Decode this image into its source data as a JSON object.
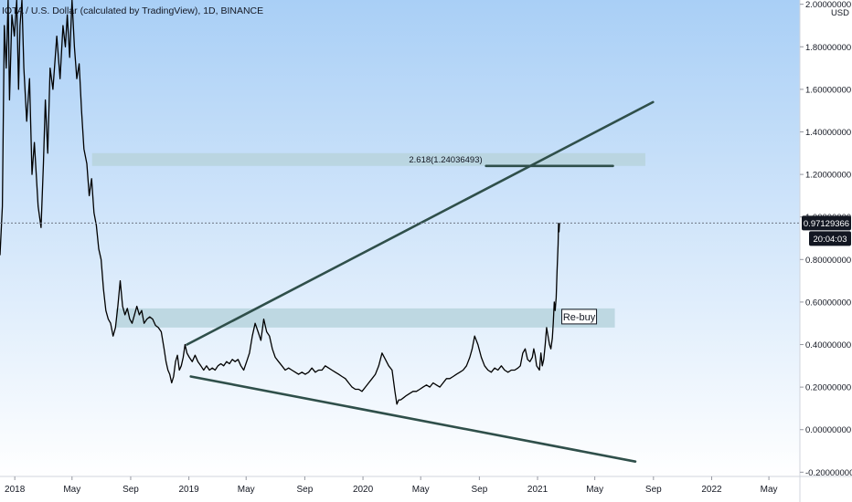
{
  "header": {
    "title": "IOTA / U.S. Dollar (calculated by TradingView), 1D, BINANCE",
    "currency_label": "USD"
  },
  "price_tags": {
    "current_price": "0.97129366",
    "countdown": "20:04:03"
  },
  "annotations": {
    "fib_label": "2.618(1.24036493)",
    "rebuy_label": "Re-buy"
  },
  "colors": {
    "background_gradient_top": "#a9cff6",
    "background_gradient_bottom": "#ffffff",
    "price_line": "#000000",
    "trendline": "#2f4f4a",
    "zone_fill": "#b7d4dd",
    "axis_text": "#131722",
    "tag_bg": "#131722",
    "tag_text": "#ffffff"
  },
  "chart_data": {
    "type": "line",
    "y_axis": {
      "ticks": [
        2.0,
        1.8,
        1.6,
        1.4,
        1.2,
        1.0,
        0.8,
        0.6,
        0.4,
        0.2,
        0.0,
        -0.2
      ],
      "tick_labels": [
        "2.00000000",
        "1.80000000",
        "1.60000000",
        "1.40000000",
        "1.20000000",
        "1.00000000",
        "0.80000000",
        "0.60000000",
        "0.40000000",
        "0.20000000",
        "0.00000000",
        "-0.20000000"
      ],
      "ylim": [
        -0.22,
        2.02
      ],
      "side": "right"
    },
    "x_axis": {
      "ticks": [
        "2018-01-01",
        "2018-05-01",
        "2018-09-01",
        "2019-01-01",
        "2019-05-01",
        "2019-09-01",
        "2020-01-01",
        "2020-05-01",
        "2020-09-01",
        "2021-01-01",
        "2021-05-01",
        "2021-09-01",
        "2022-01-01",
        "2022-05-01"
      ],
      "tick_labels": [
        "2018",
        "May",
        "Sep",
        "2019",
        "May",
        "Sep",
        "2020",
        "May",
        "Sep",
        "2021",
        "May",
        "Sep",
        "2022",
        "May"
      ],
      "xlim": [
        "2017-12-01",
        "2022-07-05"
      ]
    },
    "series": [
      {
        "x": [
          "2017-12-01",
          "2017-12-06",
          "2017-12-10",
          "2017-12-14",
          "2017-12-18",
          "2017-12-21",
          "2017-12-26",
          "2017-12-31",
          "2018-01-05",
          "2018-01-09",
          "2018-01-12",
          "2018-01-16",
          "2018-01-20",
          "2018-01-26",
          "2018-02-01",
          "2018-02-06",
          "2018-02-11",
          "2018-02-19",
          "2018-02-25",
          "2018-03-02",
          "2018-03-06",
          "2018-03-11",
          "2018-03-16",
          "2018-03-22",
          "2018-03-30",
          "2018-04-06",
          "2018-04-12",
          "2018-04-17",
          "2018-04-21",
          "2018-04-26",
          "2018-05-01",
          "2018-05-06",
          "2018-05-11",
          "2018-05-16",
          "2018-05-21",
          "2018-05-26",
          "2018-06-01",
          "2018-06-06",
          "2018-06-11",
          "2018-06-16",
          "2018-06-21",
          "2018-06-26",
          "2018-07-01",
          "2018-07-06",
          "2018-07-11",
          "2018-07-16",
          "2018-07-21",
          "2018-07-26",
          "2018-07-31",
          "2018-08-05",
          "2018-08-10",
          "2018-08-15",
          "2018-08-20",
          "2018-08-25",
          "2018-08-30",
          "2018-09-04",
          "2018-09-09",
          "2018-09-14",
          "2018-09-19",
          "2018-09-24",
          "2018-09-29",
          "2018-10-05",
          "2018-10-11",
          "2018-10-17",
          "2018-10-23",
          "2018-10-29",
          "2018-11-04",
          "2018-11-10",
          "2018-11-14",
          "2018-11-18",
          "2018-11-22",
          "2018-11-26",
          "2018-11-30",
          "2018-12-04",
          "2018-12-08",
          "2018-12-12",
          "2018-12-16",
          "2018-12-20",
          "2018-12-24",
          "2018-12-28",
          "2019-01-02",
          "2019-01-08",
          "2019-01-14",
          "2019-01-20",
          "2019-01-26",
          "2019-02-01",
          "2019-02-07",
          "2019-02-13",
          "2019-02-19",
          "2019-02-25",
          "2019-03-03",
          "2019-03-09",
          "2019-03-15",
          "2019-03-21",
          "2019-03-27",
          "2019-04-02",
          "2019-04-08",
          "2019-04-14",
          "2019-04-20",
          "2019-04-26",
          "2019-05-02",
          "2019-05-08",
          "2019-05-14",
          "2019-05-20",
          "2019-05-26",
          "2019-06-01",
          "2019-06-07",
          "2019-06-13",
          "2019-06-19",
          "2019-06-25",
          "2019-07-01",
          "2019-07-08",
          "2019-07-15",
          "2019-07-22",
          "2019-07-29",
          "2019-08-05",
          "2019-08-12",
          "2019-08-19",
          "2019-08-26",
          "2019-09-02",
          "2019-09-09",
          "2019-09-16",
          "2019-09-23",
          "2019-09-30",
          "2019-10-07",
          "2019-10-14",
          "2019-10-21",
          "2019-10-28",
          "2019-11-04",
          "2019-11-11",
          "2019-11-18",
          "2019-11-25",
          "2019-12-02",
          "2019-12-09",
          "2019-12-16",
          "2019-12-23",
          "2019-12-30",
          "2020-01-06",
          "2020-01-13",
          "2020-01-20",
          "2020-01-27",
          "2020-02-03",
          "2020-02-10",
          "2020-02-17",
          "2020-02-24",
          "2020-03-02",
          "2020-03-08",
          "2020-03-12",
          "2020-03-16",
          "2020-03-20",
          "2020-03-26",
          "2020-04-01",
          "2020-04-08",
          "2020-04-15",
          "2020-04-22",
          "2020-04-29",
          "2020-05-06",
          "2020-05-13",
          "2020-05-20",
          "2020-05-27",
          "2020-06-03",
          "2020-06-10",
          "2020-06-17",
          "2020-06-24",
          "2020-07-01",
          "2020-07-08",
          "2020-07-15",
          "2020-07-22",
          "2020-07-29",
          "2020-08-05",
          "2020-08-12",
          "2020-08-17",
          "2020-08-22",
          "2020-08-29",
          "2020-09-05",
          "2020-09-12",
          "2020-09-19",
          "2020-09-26",
          "2020-10-03",
          "2020-10-10",
          "2020-10-17",
          "2020-10-24",
          "2020-10-31",
          "2020-11-07",
          "2020-11-14",
          "2020-11-21",
          "2020-11-26",
          "2020-12-01",
          "2020-12-06",
          "2020-12-11",
          "2020-12-16",
          "2020-12-21",
          "2020-12-24",
          "2020-12-27",
          "2020-12-30",
          "2021-01-02",
          "2021-01-05",
          "2021-01-08",
          "2021-01-11",
          "2021-01-14",
          "2021-01-17",
          "2021-01-20",
          "2021-01-23",
          "2021-01-26",
          "2021-01-29",
          "2021-02-01",
          "2021-02-03",
          "2021-02-05",
          "2021-02-07",
          "2021-02-09",
          "2021-02-11",
          "2021-02-13",
          "2021-02-14",
          "2021-02-15",
          "2021-02-16"
        ],
        "y": [
          0.82,
          1.05,
          1.9,
          1.7,
          2.02,
          1.55,
          1.95,
          1.85,
          2.02,
          1.6,
          1.9,
          2.02,
          1.7,
          1.45,
          1.65,
          1.2,
          1.35,
          1.05,
          0.95,
          1.25,
          1.55,
          1.3,
          1.7,
          1.6,
          1.85,
          1.65,
          1.9,
          1.8,
          1.95,
          1.75,
          2.02,
          1.8,
          1.65,
          1.72,
          1.5,
          1.32,
          1.25,
          1.1,
          1.18,
          1.02,
          0.96,
          0.85,
          0.8,
          0.66,
          0.56,
          0.52,
          0.5,
          0.44,
          0.48,
          0.58,
          0.7,
          0.58,
          0.54,
          0.57,
          0.52,
          0.5,
          0.54,
          0.58,
          0.54,
          0.56,
          0.5,
          0.52,
          0.53,
          0.52,
          0.49,
          0.48,
          0.46,
          0.38,
          0.32,
          0.28,
          0.26,
          0.22,
          0.25,
          0.32,
          0.35,
          0.28,
          0.3,
          0.34,
          0.4,
          0.36,
          0.34,
          0.32,
          0.35,
          0.32,
          0.3,
          0.28,
          0.3,
          0.28,
          0.29,
          0.28,
          0.3,
          0.31,
          0.3,
          0.32,
          0.31,
          0.33,
          0.32,
          0.33,
          0.3,
          0.28,
          0.32,
          0.36,
          0.44,
          0.5,
          0.46,
          0.42,
          0.52,
          0.46,
          0.44,
          0.38,
          0.34,
          0.32,
          0.3,
          0.28,
          0.29,
          0.28,
          0.27,
          0.26,
          0.27,
          0.26,
          0.27,
          0.29,
          0.27,
          0.28,
          0.28,
          0.3,
          0.29,
          0.28,
          0.27,
          0.26,
          0.25,
          0.24,
          0.22,
          0.2,
          0.19,
          0.19,
          0.18,
          0.2,
          0.22,
          0.24,
          0.26,
          0.3,
          0.36,
          0.33,
          0.3,
          0.28,
          0.18,
          0.12,
          0.14,
          0.14,
          0.15,
          0.16,
          0.17,
          0.18,
          0.18,
          0.19,
          0.2,
          0.21,
          0.2,
          0.22,
          0.21,
          0.2,
          0.22,
          0.24,
          0.24,
          0.25,
          0.26,
          0.27,
          0.28,
          0.3,
          0.34,
          0.38,
          0.44,
          0.4,
          0.34,
          0.3,
          0.28,
          0.27,
          0.29,
          0.28,
          0.3,
          0.28,
          0.27,
          0.28,
          0.28,
          0.29,
          0.3,
          0.36,
          0.38,
          0.33,
          0.32,
          0.34,
          0.38,
          0.35,
          0.3,
          0.29,
          0.28,
          0.36,
          0.3,
          0.33,
          0.4,
          0.48,
          0.44,
          0.4,
          0.38,
          0.43,
          0.5,
          0.6,
          0.56,
          0.62,
          0.75,
          0.87,
          0.97,
          0.93,
          0.97
        ]
      }
    ],
    "horizontal_zones": [
      {
        "y_low": 1.24,
        "y_high": 1.3,
        "x_start": "2018-06-12",
        "x_end": "2021-08-15"
      },
      {
        "y_low": 0.48,
        "y_high": 0.57,
        "x_start": "2018-08-01",
        "x_end": "2021-06-12",
        "label": "Re-buy"
      }
    ],
    "trendlines": [
      {
        "x1": "2018-12-28",
        "y1": 0.4,
        "x2": "2021-08-31",
        "y2": 1.54
      },
      {
        "x1": "2019-01-05",
        "y1": 0.25,
        "x2": "2021-07-25",
        "y2": -0.15
      },
      {
        "x1": "2020-09-15",
        "y1": 1.24,
        "x2": "2021-06-08",
        "y2": 1.24,
        "label": "2.618(1.24036493)"
      }
    ],
    "current_price": 0.97129366
  }
}
